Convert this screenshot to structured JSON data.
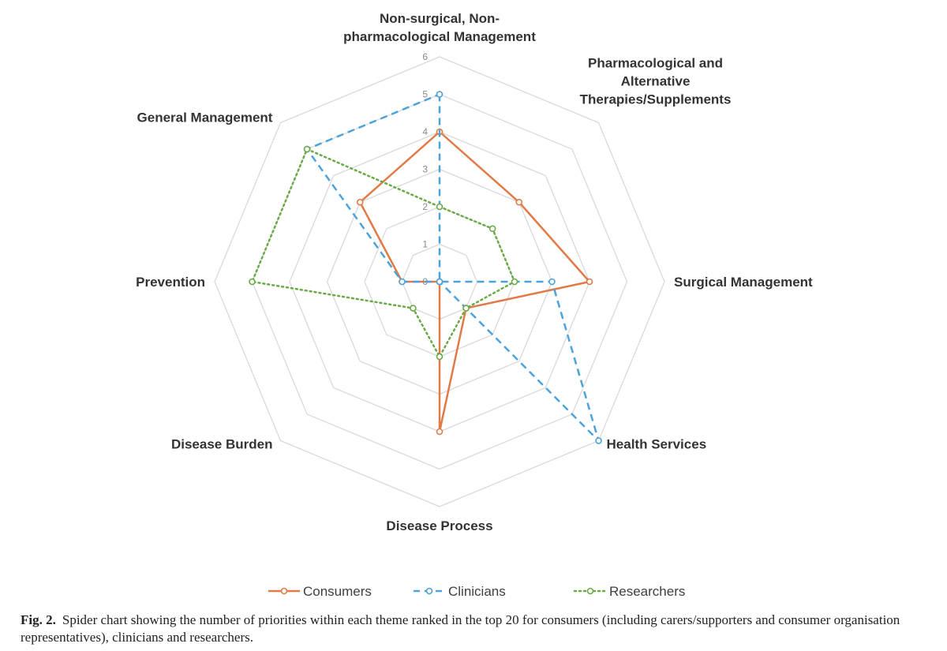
{
  "chart_data": {
    "type": "radar",
    "categories": [
      "Non-surgical, Non-pharmacological Management",
      "Pharmacological and Alternative Therapies/Supplements",
      "Surgical Management",
      "Health Services",
      "Disease Process",
      "Disease Burden",
      "Prevention",
      "General Management"
    ],
    "category_label_lines": [
      [
        "Non-surgical, Non-",
        "pharmacological Management"
      ],
      [
        "Pharmacological and",
        "Alternative",
        "Therapies/Supplements"
      ],
      [
        "Surgical Management"
      ],
      [
        "Health Services"
      ],
      [
        "Disease Process"
      ],
      [
        "Disease Burden"
      ],
      [
        "Prevention"
      ],
      [
        "General Management"
      ]
    ],
    "rlim": [
      0,
      6
    ],
    "ticks": [
      "0",
      "1",
      "2",
      "3",
      "4",
      "5",
      "6"
    ],
    "series": [
      {
        "name": "Consumers",
        "color": "#e07b47",
        "style": "solid",
        "values": [
          4,
          3,
          4,
          1,
          4,
          0,
          1,
          3
        ]
      },
      {
        "name": "Clinicians",
        "color": "#4da3d8",
        "style": "dashed",
        "values": [
          5,
          0,
          3,
          6,
          0,
          0,
          1,
          5
        ]
      },
      {
        "name": "Researchers",
        "color": "#6aaa46",
        "style": "dotted",
        "values": [
          2,
          2,
          2,
          1,
          2,
          1,
          5,
          5
        ]
      }
    ],
    "legend_position": "bottom"
  },
  "caption": {
    "label": "Fig. 2.",
    "text": "Spider chart showing the number of priorities within each theme ranked in the top 20 for consumers (including carers/supporters and consumer organisation representatives), clinicians and researchers."
  }
}
